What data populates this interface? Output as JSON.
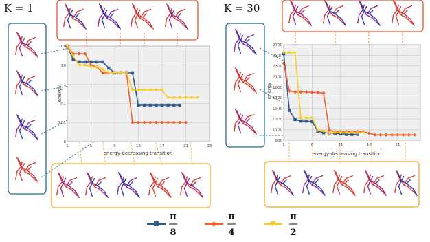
{
  "colors": {
    "pi_8": "#2e5b8a",
    "pi_4": "#f0602a",
    "pi_2": "#f7cc2c",
    "panel_blue": "#1f6a97",
    "panel_orange": "#f5a623",
    "panel_red": "#e8552b",
    "plot_bg": "#efefef",
    "grid": "#bbbbbb",
    "pose_red": "#d63a34",
    "pose_blue": "#2c3ab8",
    "pose_purple": "#8e2a8a"
  },
  "icons": [
    "pose-figure-icon"
  ],
  "panels": {
    "left_title": "K = 1",
    "right_title": "K = 30"
  },
  "legend": {
    "pi8": {
      "num": "π",
      "den": "8"
    },
    "pi4": {
      "num": "π",
      "den": "4"
    },
    "pi2": {
      "num": "π",
      "den": "2"
    }
  },
  "chart_data": [
    {
      "type": "line",
      "title": "",
      "xlabel": "energy-decreasing transition",
      "ylabel": "energy",
      "yscale": "log",
      "xlim": [
        1,
        25
      ],
      "ylim": [
        0,
        100
      ],
      "x_ticks": [
        1,
        5,
        9,
        13,
        17,
        21,
        25
      ],
      "y_ticks": [
        "100",
        "10",
        "1",
        "0.1",
        "0.01",
        "0"
      ],
      "grid": true,
      "series": [
        {
          "name": "π/8",
          "x": [
            1,
            2,
            3,
            4,
            5,
            6,
            7,
            8,
            9,
            10,
            11,
            12,
            13,
            14,
            15,
            16,
            17,
            18,
            19,
            20
          ],
          "values": [
            100,
            20,
            15,
            15,
            15,
            15,
            15,
            7,
            4,
            4,
            4,
            4,
            0.08,
            0.08,
            0.08,
            0.08,
            0.08,
            0.08,
            0.08,
            0.08
          ]
        },
        {
          "name": "π/4",
          "x": [
            1,
            2,
            3,
            4,
            5,
            6,
            7,
            8,
            9,
            10,
            11,
            12,
            13,
            14,
            15,
            16,
            17,
            18,
            19,
            20,
            21
          ],
          "values": [
            100,
            40,
            40,
            40,
            10,
            8,
            4,
            4,
            4,
            4,
            4,
            0.01,
            0.01,
            0.01,
            0.01,
            0.01,
            0.01,
            0.01,
            0.01,
            0.01,
            0.01
          ]
        },
        {
          "name": "π/2",
          "x": [
            1,
            2,
            3,
            4,
            5,
            6,
            7,
            8,
            9,
            10,
            11,
            12,
            13,
            14,
            15,
            16,
            17,
            18,
            19,
            20,
            21,
            22,
            23
          ],
          "values": [
            100,
            30,
            10,
            10,
            8,
            8,
            6,
            4,
            4,
            4,
            4,
            0.5,
            0.5,
            0.5,
            0.5,
            0.5,
            0.5,
            0.2,
            0.2,
            0.2,
            0.2,
            0.2,
            0.2
          ]
        }
      ]
    },
    {
      "type": "line",
      "title": "",
      "xlabel": "energy-decreasing transition",
      "ylabel": "energy",
      "yscale": "linear",
      "xlim": [
        1,
        25
      ],
      "ylim": [
        900,
        2700
      ],
      "x_ticks": [
        1,
        6,
        11,
        16,
        21
      ],
      "y_ticks": [
        2700,
        2500,
        2300,
        2100,
        1900,
        1700,
        1500,
        1300,
        1100,
        900
      ],
      "grid": true,
      "series": [
        {
          "name": "π/8",
          "x": [
            1,
            2,
            3,
            4,
            5,
            6,
            7,
            8,
            9,
            10,
            11,
            12,
            13,
            14
          ],
          "values": [
            2530,
            1460,
            1290,
            1260,
            1260,
            1250,
            1070,
            1040,
            1040,
            1030,
            1020,
            1010,
            1010,
            1010
          ]
        },
        {
          "name": "π/4",
          "x": [
            1,
            2,
            3,
            4,
            5,
            6,
            7,
            8,
            9,
            10,
            11,
            12,
            13,
            14,
            15,
            16,
            17,
            18,
            19,
            20,
            21,
            22,
            23,
            24
          ],
          "values": [
            2350,
            1830,
            1810,
            1810,
            1810,
            1800,
            1800,
            1790,
            1090,
            1060,
            1060,
            1060,
            1060,
            1060,
            1060,
            1030,
            1000,
            1000,
            1000,
            1000,
            1000,
            1000,
            1000,
            1000
          ]
        },
        {
          "name": "π/2",
          "x": [
            1,
            2,
            3,
            4,
            5,
            6,
            7,
            8,
            9,
            10,
            11,
            12,
            13,
            14,
            15
          ],
          "values": [
            2550,
            2550,
            2550,
            1320,
            1320,
            1320,
            1090,
            1070,
            1040,
            1040,
            1040,
            1040,
            1040,
            1040,
            1040
          ]
        }
      ]
    }
  ]
}
